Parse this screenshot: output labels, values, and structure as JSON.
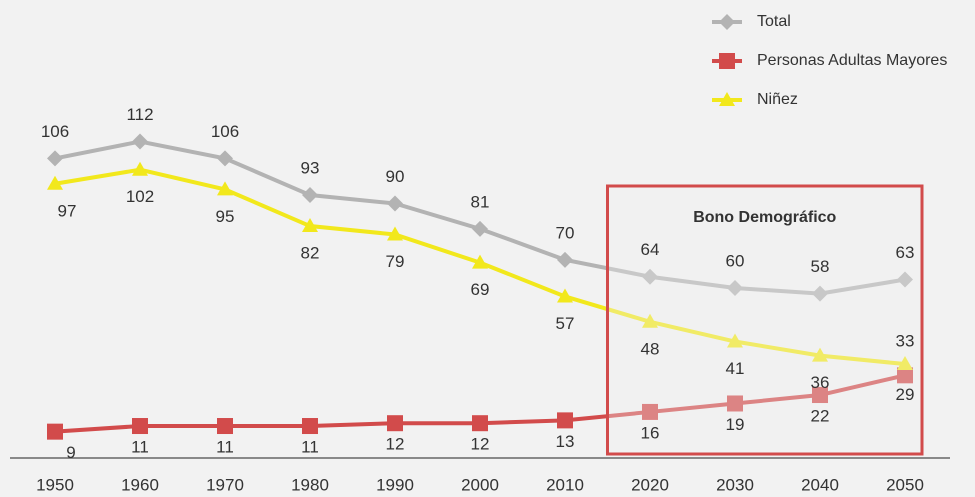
{
  "chart_data": {
    "type": "line",
    "categories": [
      "1950",
      "1960",
      "1970",
      "1980",
      "1990",
      "2000",
      "2010",
      "2020",
      "2030",
      "2040",
      "2050"
    ],
    "series": [
      {
        "name": "Total",
        "color": "#b3b3b3",
        "marker": "diamond",
        "values": [
          106,
          112,
          106,
          93,
          90,
          81,
          70,
          64,
          60,
          58,
          63
        ]
      },
      {
        "name": "Personas Adultas Mayores",
        "color": "#d24b4b",
        "marker": "square",
        "values": [
          9,
          11,
          11,
          11,
          12,
          12,
          13,
          16,
          19,
          22,
          29
        ]
      },
      {
        "name": "Niñez",
        "color": "#f2e81c",
        "marker": "triangle",
        "values": [
          97,
          102,
          95,
          82,
          79,
          69,
          57,
          48,
          41,
          36,
          33
        ]
      }
    ],
    "ylim": [
      0,
      120
    ],
    "annotations": [
      {
        "text": "Bono Demográfico"
      }
    ],
    "legend": "top-right"
  }
}
